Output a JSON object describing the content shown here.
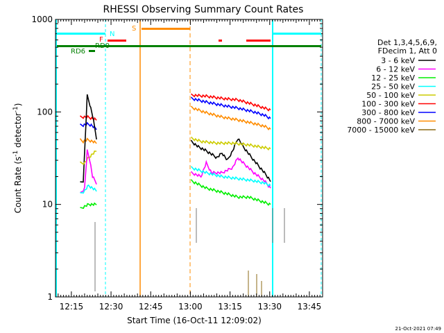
{
  "chart_data": {
    "type": "line",
    "title": "RHESSI Observing Summary Count Rates",
    "xlabel": "Start Time (16-Oct-11 12:09:02)",
    "ylabel_main": "Count Rate (s",
    "ylabel_sup": "-1",
    "ylabel_tail": " detector",
    "ylabel_end": ")",
    "y_scale": "log",
    "ylim": [
      1,
      1000
    ],
    "xlim_minutes": [
      12.15,
      13.83
    ],
    "x_ticks": [
      {
        "label": "12:15",
        "min": 735
      },
      {
        "label": "12:30",
        "min": 750
      },
      {
        "label": "12:45",
        "min": 765
      },
      {
        "label": "13:00",
        "min": 780
      },
      {
        "label": "13:15",
        "min": 795
      },
      {
        "label": "13:30",
        "min": 810
      },
      {
        "label": "13:45",
        "min": 825
      }
    ],
    "y_ticks": [
      {
        "label": "1000",
        "v": 1000
      },
      {
        "label": "100",
        "v": 100
      },
      {
        "label": "10",
        "v": 10
      },
      {
        "label": "1",
        "v": 1
      }
    ],
    "legend": {
      "header1": "Det 1,3,4,5,6,9,",
      "header2": "FDecim 1, Att 0",
      "entries": [
        {
          "label": "3 - 6 keV",
          "color": "#000000"
        },
        {
          "label": "6 - 12 keV",
          "color": "#ff00ff"
        },
        {
          "label": "12 - 25 keV",
          "color": "#00ee00"
        },
        {
          "label": "25 - 50 keV",
          "color": "#00ffff"
        },
        {
          "label": "50 - 100 keV",
          "color": "#cccc00"
        },
        {
          "label": "100 - 300 keV",
          "color": "#ff0000"
        },
        {
          "label": "300 - 800 keV",
          "color": "#0000ff"
        },
        {
          "label": "800 - 7000 keV",
          "color": "#ff8c00"
        },
        {
          "label": "7000 - 15000 keV",
          "color": "#8b6914"
        }
      ]
    },
    "flags": [
      {
        "label": "N",
        "color": "#00ffff"
      },
      {
        "label": "F",
        "color": "#ff0000"
      },
      {
        "label": "S",
        "color": "#ff8c00"
      },
      {
        "label": "RD0",
        "color": "#008000"
      },
      {
        "label": "RD6",
        "color": "#008000"
      }
    ],
    "series": [
      {
        "color": "#ff0000",
        "segments": [
          [
            [
              738.3,
              88
            ],
            [
              739.5,
              88
            ],
            [
              741.2,
              88
            ],
            [
              742.3,
              86
            ],
            [
              743.5,
              84
            ],
            [
              744.5,
              82
            ]
          ],
          [
            [
              780.3,
              152
            ],
            [
              786,
              148
            ],
            [
              792,
              140
            ],
            [
              798,
              135
            ],
            [
              804,
              120
            ],
            [
              808,
              110
            ],
            [
              810.3,
              105
            ]
          ]
        ]
      },
      {
        "color": "#0000ff",
        "segments": [
          [
            [
              738.3,
              72
            ],
            [
              739.5,
              72
            ],
            [
              741,
              74
            ],
            [
              742.5,
              72
            ],
            [
              744.5,
              65
            ]
          ],
          [
            [
              780.3,
              140
            ],
            [
              786,
              128
            ],
            [
              792,
              118
            ],
            [
              798,
              110
            ],
            [
              804,
              100
            ],
            [
              808,
              92
            ],
            [
              810.3,
              85
            ]
          ]
        ]
      },
      {
        "color": "#ff8c00",
        "segments": [
          [
            [
              738.3,
              50
            ],
            [
              739.5,
              48
            ],
            [
              741,
              50
            ],
            [
              743,
              48
            ],
            [
              744.5,
              46
            ]
          ],
          [
            [
              780.3,
              112
            ],
            [
              786,
              98
            ],
            [
              792,
              88
            ],
            [
              798,
              82
            ],
            [
              804,
              75
            ],
            [
              808,
              70
            ],
            [
              810.3,
              65
            ]
          ]
        ]
      },
      {
        "color": "#000000",
        "segments": [
          [
            [
              738.3,
              17
            ],
            [
              739.5,
              18
            ],
            [
              741,
              150
            ],
            [
              742,
              120
            ],
            [
              743,
              92
            ],
            [
              744.5,
              52
            ]
          ],
          [
            [
              780.3,
              48
            ],
            [
              783,
              42
            ],
            [
              786,
              38
            ],
            [
              790,
              32
            ],
            [
              792,
              36
            ],
            [
              794,
              30
            ],
            [
              796,
              38
            ],
            [
              798,
              52
            ],
            [
              800,
              42
            ],
            [
              804,
              30
            ],
            [
              808,
              22
            ],
            [
              810.3,
              18
            ]
          ]
        ]
      },
      {
        "color": "#cccc00",
        "segments": [
          [
            [
              738.3,
              28
            ],
            [
              740,
              28
            ],
            [
              741.5,
              32
            ],
            [
              743,
              35
            ],
            [
              744.5,
              38
            ]
          ],
          [
            [
              780.3,
              52
            ],
            [
              784,
              48
            ],
            [
              790,
              46
            ],
            [
              796,
              46
            ],
            [
              802,
              44
            ],
            [
              806,
              42
            ],
            [
              810.3,
              40
            ]
          ]
        ]
      },
      {
        "color": "#ff00ff",
        "segments": [
          [
            [
              738.3,
              13
            ],
            [
              740,
              15
            ],
            [
              741,
              38
            ],
            [
              742,
              30
            ],
            [
              743,
              20
            ],
            [
              744.5,
              17
            ]
          ],
          [
            [
              780.3,
              22
            ],
            [
              784,
              20
            ],
            [
              786,
              28
            ],
            [
              788,
              22
            ],
            [
              792,
              22
            ],
            [
              796,
              25
            ],
            [
              798,
              32
            ],
            [
              800,
              28
            ],
            [
              804,
              22
            ],
            [
              808,
              18
            ],
            [
              810.3,
              15
            ]
          ]
        ]
      },
      {
        "color": "#00ffff",
        "segments": [
          [
            [
              738.3,
              13
            ],
            [
              740,
              14
            ],
            [
              741.5,
              16
            ],
            [
              743,
              15
            ],
            [
              744.5,
              14
            ]
          ],
          [
            [
              780.3,
              25
            ],
            [
              786,
              22
            ],
            [
              792,
              20
            ],
            [
              798,
              19
            ],
            [
              804,
              18
            ],
            [
              808,
              17
            ],
            [
              810.3,
              16
            ]
          ]
        ]
      },
      {
        "color": "#00ee00",
        "segments": [
          [
            [
              738.3,
              9
            ],
            [
              740,
              9.5
            ],
            [
              741.5,
              10
            ],
            [
              743,
              10
            ],
            [
              744.5,
              10
            ]
          ],
          [
            [
              780.3,
              18
            ],
            [
              786,
              15
            ],
            [
              790,
              14
            ],
            [
              794,
              13
            ],
            [
              798,
              12
            ],
            [
              802,
              12
            ],
            [
              806,
              11
            ],
            [
              810.3,
              10
            ]
          ]
        ]
      }
    ]
  }
}
